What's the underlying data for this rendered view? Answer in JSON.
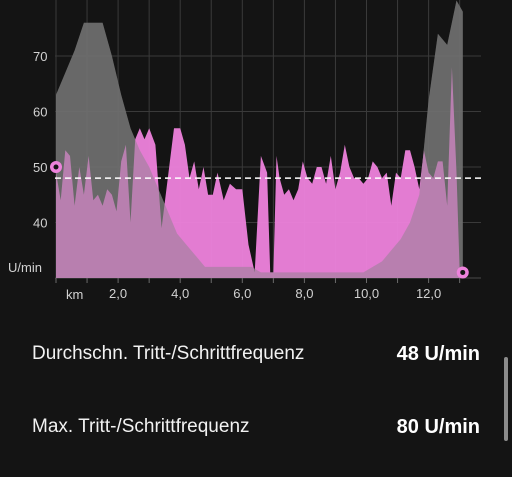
{
  "chart_data": {
    "type": "area",
    "y_unit_label": "U/min",
    "x_unit_label": "km",
    "y_ticks": [
      40,
      50,
      60,
      70
    ],
    "x_ticks": [
      "2,0",
      "4,0",
      "6,0",
      "8,0",
      "10,0",
      "12,0"
    ],
    "ylim": [
      30,
      80
    ],
    "xlim": [
      0,
      13.5
    ],
    "average_value": 48,
    "grid": true,
    "series": [
      {
        "color": "#ee82dc",
        "x": [
          0.0,
          0.15,
          0.3,
          0.45,
          0.6,
          0.75,
          0.9,
          1.05,
          1.2,
          1.35,
          1.5,
          1.65,
          1.8,
          1.95,
          2.1,
          2.25,
          2.4,
          2.55,
          2.7,
          2.85,
          3.0,
          3.2,
          3.4,
          3.6,
          3.8,
          4.0,
          4.15,
          4.3,
          4.45,
          4.6,
          4.75,
          4.9,
          5.05,
          5.2,
          5.4,
          5.6,
          5.8,
          6.0,
          6.2,
          6.4,
          6.6,
          6.8,
          6.9,
          7.0,
          7.1,
          7.2,
          7.35,
          7.5,
          7.65,
          7.8,
          7.95,
          8.1,
          8.25,
          8.4,
          8.55,
          8.7,
          8.85,
          9.0,
          9.15,
          9.3,
          9.45,
          9.6,
          9.75,
          9.9,
          10.05,
          10.2,
          10.35,
          10.5,
          10.65,
          10.8,
          10.95,
          11.1,
          11.25,
          11.4,
          11.55,
          11.7,
          11.85,
          12.0,
          12.15,
          12.3,
          12.45,
          12.6,
          12.75,
          12.9,
          13.0
        ],
        "values": [
          49,
          44,
          53,
          52,
          43,
          50,
          45,
          52,
          44,
          45,
          43,
          46,
          45,
          42,
          51,
          54,
          40,
          55,
          57,
          55,
          57,
          54,
          39,
          48,
          57,
          57,
          54,
          48,
          51,
          46,
          50,
          45,
          45,
          49,
          44,
          47,
          46,
          46,
          36,
          31,
          52,
          49,
          31,
          31,
          52,
          48,
          45,
          46,
          44,
          46,
          51,
          48,
          47,
          50,
          50,
          47,
          52,
          46,
          49,
          54,
          50,
          48,
          48,
          47,
          48,
          51,
          50,
          48,
          49,
          43,
          49,
          48,
          53,
          53,
          50,
          46,
          53,
          49,
          48,
          51,
          51,
          43,
          68,
          49,
          31
        ]
      },
      {
        "color": "#5f5f5f",
        "x": [
          0.0,
          0.3,
          0.6,
          0.9,
          1.2,
          1.5,
          1.8,
          2.1,
          2.4,
          2.7,
          3.0,
          3.3,
          3.6,
          3.9,
          4.2,
          4.5,
          4.8,
          5.1,
          5.4,
          5.7,
          6.0,
          6.3,
          6.6,
          6.9,
          7.2,
          7.5,
          7.8,
          8.1,
          8.4,
          8.7,
          9.0,
          9.3,
          9.6,
          9.9,
          10.2,
          10.5,
          10.8,
          11.1,
          11.4,
          11.7,
          12.0,
          12.3,
          12.6,
          12.9,
          13.1
        ],
        "values": [
          63,
          67,
          71,
          76,
          76,
          76,
          70,
          63,
          57,
          53,
          50,
          46,
          42,
          38,
          36,
          34,
          32,
          32,
          32,
          32,
          32,
          32,
          31,
          31,
          31,
          31,
          31,
          31,
          31,
          31,
          31,
          31,
          31,
          31,
          32,
          33,
          35,
          37,
          40,
          45,
          62,
          74,
          72,
          80,
          78
        ]
      }
    ],
    "markers": [
      {
        "x": 0.0,
        "y": 50
      },
      {
        "x": 13.1,
        "y": 31
      }
    ]
  },
  "stats": [
    {
      "label": "Durchschn. Tritt-/Schrittfrequenz",
      "value": "48 U/min"
    },
    {
      "label": "Max. Tritt-/Schrittfrequenz",
      "value": "80 U/min"
    }
  ],
  "colors": {
    "cadence_area": "#ee82dc",
    "comparison_area": "#5f5f5f",
    "marker_ring": "#ee82dc",
    "average_line": "#ffffff",
    "background": "#141414"
  }
}
